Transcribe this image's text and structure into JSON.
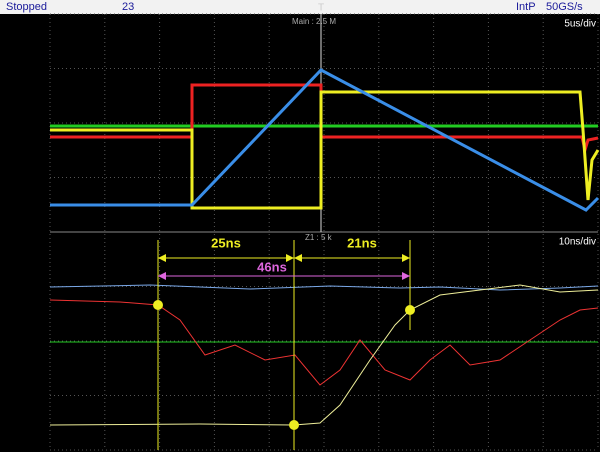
{
  "status_bar": {
    "state": "Stopped",
    "count": "23",
    "trigger_marker": "T",
    "mode": "IntP",
    "sample_rate": "50GS/s"
  },
  "upper_pane": {
    "timebase_label": "Main : 2.5 M",
    "scale": "5us/div"
  },
  "lower_pane": {
    "zoom_label": "Z1 : 5 k",
    "scale": "10ns/div"
  },
  "measurements": {
    "first": "25ns",
    "second": "21ns",
    "total": "46ns"
  }
}
